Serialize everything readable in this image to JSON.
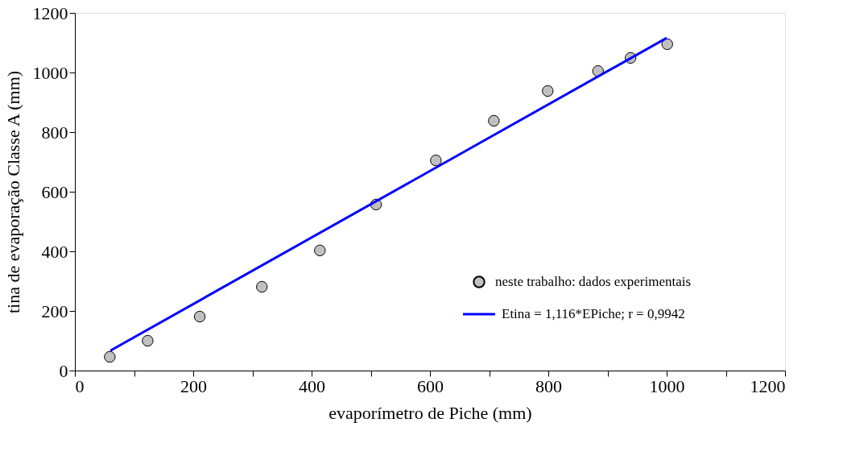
{
  "chart_data": {
    "type": "scatter",
    "xlabel": "evaporímetro de Piche (mm)",
    "ylabel": "tina de evaporação Classe A (mm)",
    "xlim": [
      0,
      1200
    ],
    "ylim": [
      0,
      1200
    ],
    "xticks": [
      0,
      {
        "value": 100,
        "label": null
      },
      200,
      {
        "value": 300,
        "label": null
      },
      400,
      {
        "value": 500,
        "label": null
      },
      600,
      {
        "value": 700,
        "label": null
      },
      800,
      {
        "value": 900,
        "label": null
      },
      1000,
      {
        "value": 1100,
        "label": null
      },
      1200
    ],
    "yticks": [
      0,
      200,
      400,
      600,
      800,
      1000,
      1200
    ],
    "grid": false,
    "legend": "bottom right",
    "series": [
      {
        "name": "neste trabalho: dados experimentais",
        "type": "scatter",
        "marker": "circle",
        "color": "#c0c0c0",
        "x": [
          59,
          123,
          211,
          316,
          414,
          509,
          610,
          708,
          799,
          884,
          939,
          1001
        ],
        "values": [
          46,
          100,
          181,
          281,
          403,
          557,
          705,
          838,
          938,
          1005,
          1049,
          1095
        ]
      },
      {
        "name": "Etina = 1,116*EPiche; r = 0,9942",
        "type": "line",
        "marker": "none",
        "color": "#0000ff",
        "line_style": "solid",
        "x": [
          60,
          1000
        ],
        "values": [
          67,
          1116
        ]
      }
    ]
  }
}
